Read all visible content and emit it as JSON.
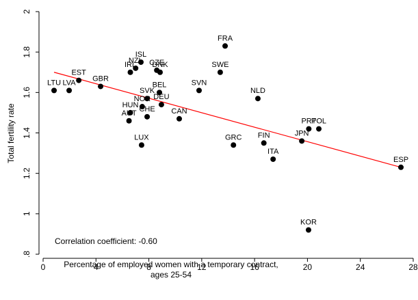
{
  "chart_data": {
    "type": "scatter",
    "xlabel": [
      "Percentage of employed women with a temporary contract,",
      "ages 25-54"
    ],
    "ylabel": "Total fertility rate",
    "annotation": "Correlation coefficient: -0.60",
    "xlim": [
      0,
      28
    ],
    "ylim": [
      0.8,
      2
    ],
    "xticks": [
      0,
      4,
      8,
      12,
      16,
      20,
      24,
      28
    ],
    "yticks": [
      {
        "value": 0.8,
        "label": ".8"
      },
      1,
      1.2,
      1.4,
      1.6,
      1.8,
      2
    ],
    "color": "#000000",
    "labels": [
      "LTU",
      "LVA",
      "EST",
      "GBR",
      "IRL",
      "NZL",
      "ISL",
      "CZE",
      "DNK",
      "BEL",
      "SVK",
      "NOR",
      "DEU",
      "HUN",
      "AUT",
      "CHE",
      "CAN",
      "LUX",
      "SVN",
      "FRA",
      "SWE",
      "GRC",
      "NLD",
      "FIN",
      "ITA",
      "PRT",
      "POL",
      "JPN",
      "ESP",
      "KOR"
    ],
    "x": [
      0.83,
      1.97,
      2.7,
      4.35,
      6.6,
      7.0,
      7.4,
      8.6,
      8.85,
      8.8,
      7.87,
      7.5,
      8.95,
      6.6,
      6.5,
      7.87,
      10.3,
      7.45,
      11.8,
      13.77,
      13.4,
      14.4,
      16.25,
      16.7,
      17.4,
      20.1,
      20.86,
      19.57,
      27.07,
      20.08
    ],
    "values": [
      1.61,
      1.61,
      1.66,
      1.63,
      1.7,
      1.72,
      1.75,
      1.71,
      1.7,
      1.6,
      1.57,
      1.53,
      1.54,
      1.5,
      1.46,
      1.48,
      1.47,
      1.34,
      1.61,
      1.83,
      1.7,
      1.34,
      1.57,
      1.35,
      1.27,
      1.42,
      1.42,
      1.36,
      1.23,
      0.92
    ],
    "fit": {
      "color": "#ff0000",
      "x": [
        0.83,
        27.07
      ],
      "values": [
        1.7,
        1.23
      ]
    }
  }
}
